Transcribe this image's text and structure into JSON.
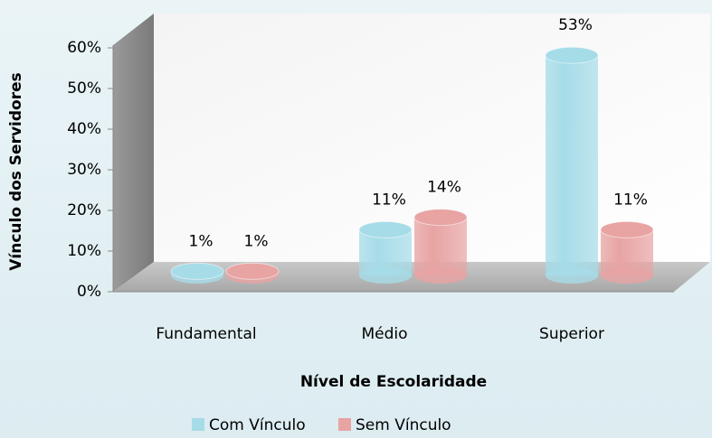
{
  "chart_data": {
    "type": "bar3d",
    "categories": [
      "Fundamental",
      "Médio",
      "Superior"
    ],
    "series": [
      {
        "name": "Com Vínculo",
        "color": "#a6dce8",
        "values": [
          1,
          11,
          53
        ],
        "value_labels": [
          "1%",
          "11%",
          "53%"
        ]
      },
      {
        "name": "Sem Vínculo",
        "color": "#e8a3a3",
        "values": [
          1,
          14,
          11
        ],
        "value_labels": [
          "1%",
          "14%",
          "11%"
        ]
      }
    ],
    "ylim": [
      0,
      60
    ],
    "yticks": [
      {
        "value": 0,
        "label": "0%"
      },
      {
        "value": 10,
        "label": "10%"
      },
      {
        "value": 20,
        "label": "20%"
      },
      {
        "value": 30,
        "label": "30%"
      },
      {
        "value": 40,
        "label": "40%"
      },
      {
        "value": 50,
        "label": "50%"
      },
      {
        "value": 60,
        "label": "60%"
      }
    ],
    "y_label": "Vínculo dos Servidores",
    "x_label": "Nível de Escolaridade",
    "legend": "bottom"
  }
}
